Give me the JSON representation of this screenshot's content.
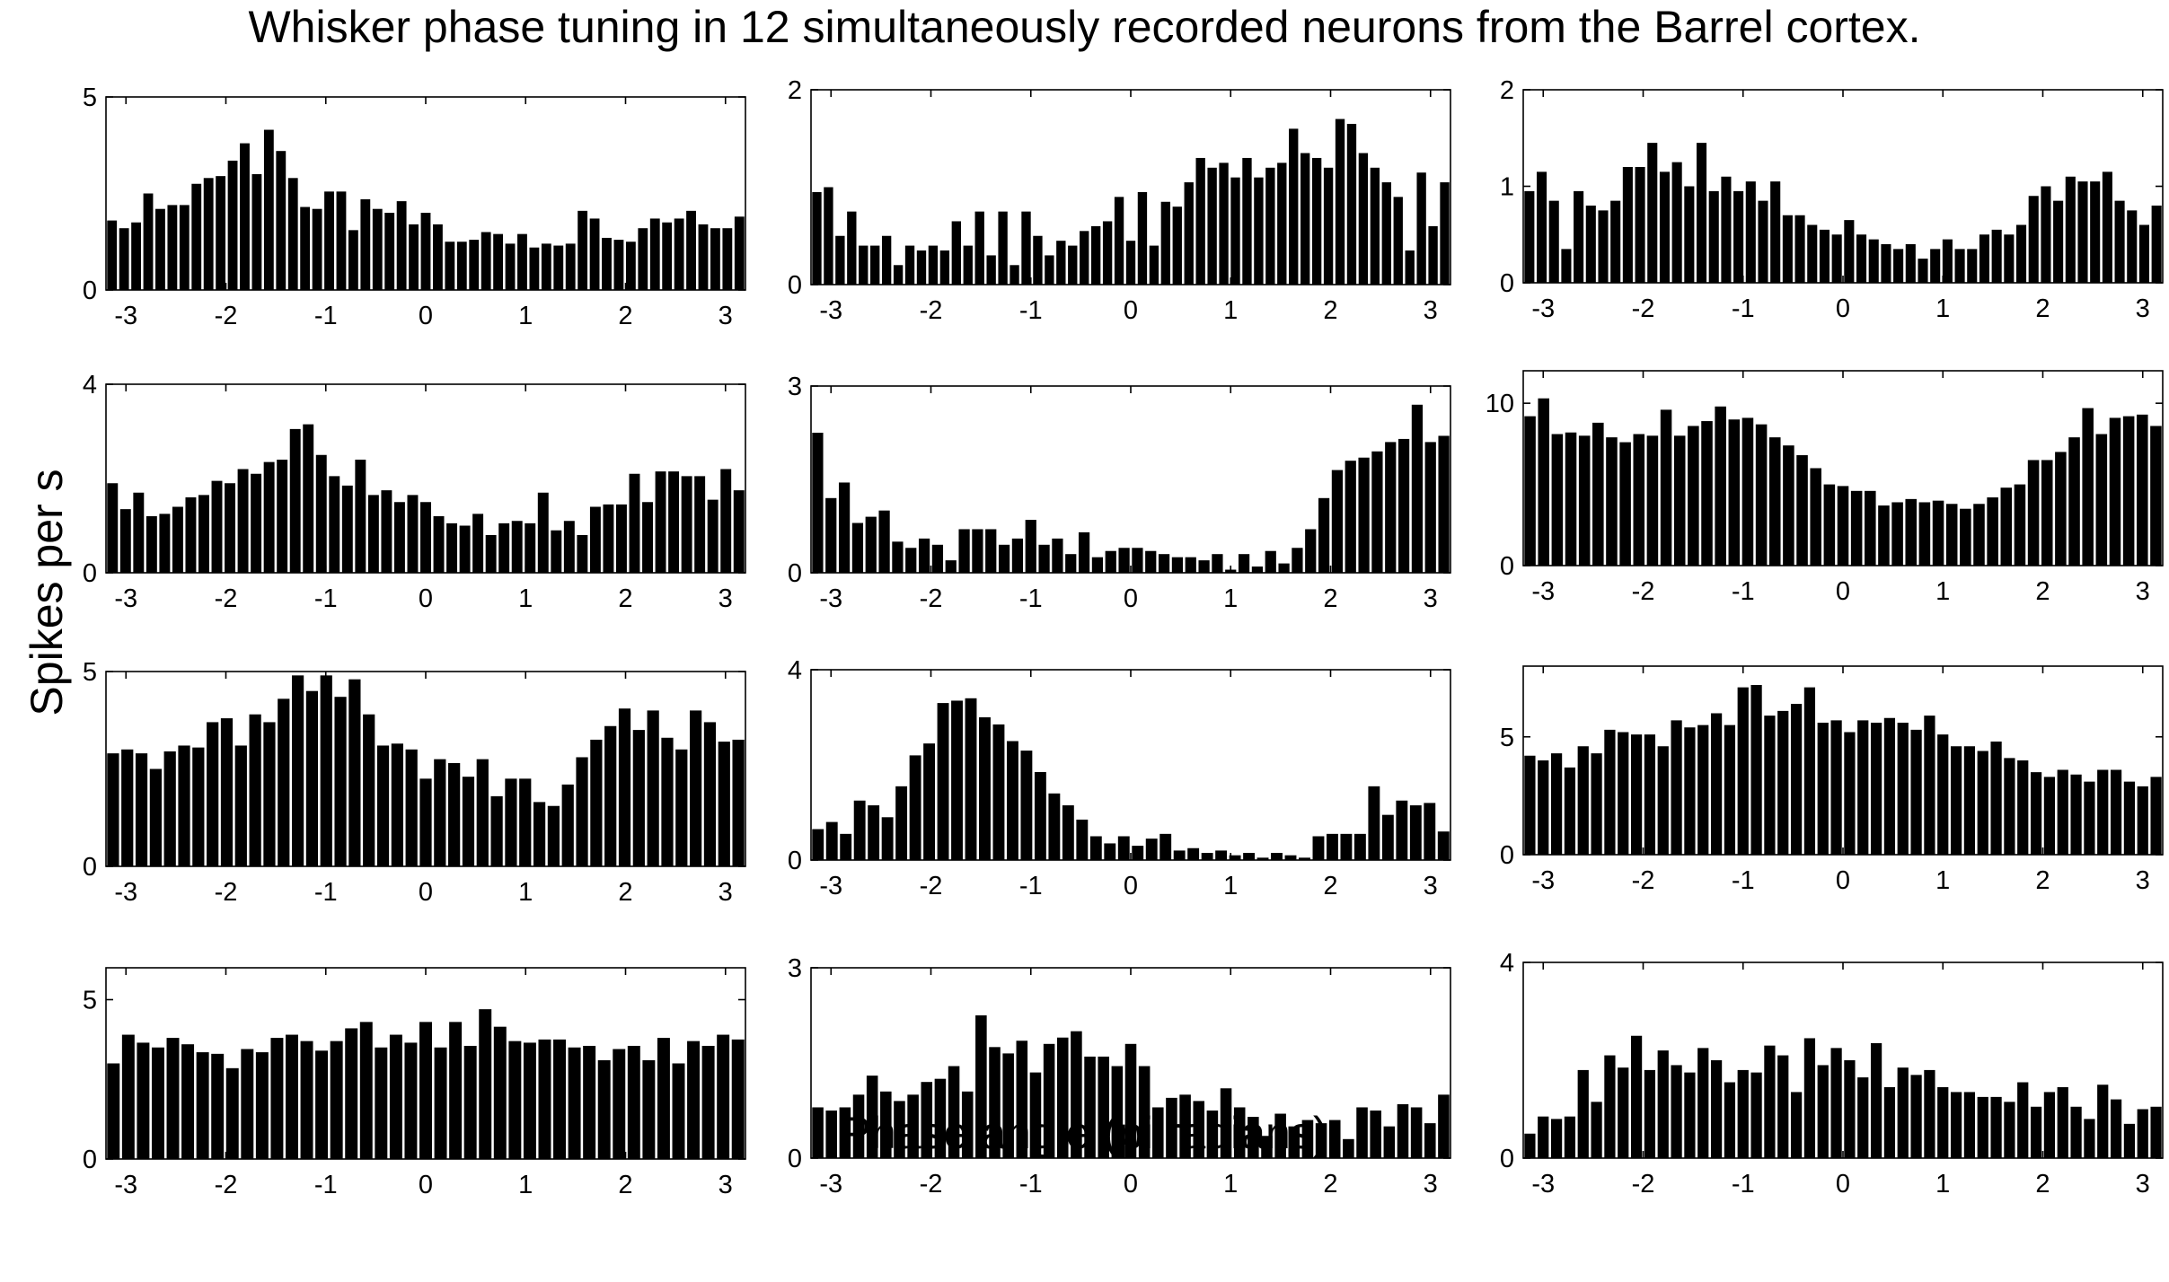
{
  "figure": {
    "title": "Whisker phase tuning in 12 simultaneously recorded neurons from the Barrel cortex.",
    "xlabel": "Phase angle (pi radians)",
    "ylabel": "Spikes per s"
  },
  "colors": {
    "bars": "#000000",
    "axes": "#000000",
    "background": "#ffffff"
  },
  "chart_data": [
    {
      "type": "bar",
      "title": "",
      "xlabel": "",
      "ylabel": "",
      "xlim": [
        -3.2,
        3.2
      ],
      "ylim": [
        0,
        5
      ],
      "xticks": [
        -3,
        -2,
        -1,
        0,
        1,
        2,
        3
      ],
      "yticks": [
        0,
        5
      ],
      "values": [
        1.8,
        1.6,
        1.75,
        2.5,
        2.1,
        2.2,
        2.2,
        2.75,
        2.9,
        2.95,
        3.35,
        3.8,
        3.0,
        4.15,
        3.6,
        2.9,
        2.15,
        2.1,
        2.55,
        2.55,
        1.55,
        2.35,
        2.1,
        2.0,
        2.3,
        1.7,
        2.0,
        1.7,
        1.25,
        1.25,
        1.3,
        1.5,
        1.45,
        1.2,
        1.45,
        1.1,
        1.2,
        1.15,
        1.2,
        2.05,
        1.85,
        1.35,
        1.3,
        1.25,
        1.6,
        1.85,
        1.75,
        1.85,
        2.05,
        1.7,
        1.6,
        1.6,
        1.9
      ],
      "grid": false,
      "legend": "none"
    },
    {
      "type": "bar",
      "title": "",
      "xlabel": "",
      "ylabel": "",
      "xlim": [
        -3.2,
        3.2
      ],
      "ylim": [
        0,
        2
      ],
      "xticks": [
        -3,
        -2,
        -1,
        0,
        1,
        2,
        3
      ],
      "yticks": [
        0,
        2
      ],
      "values": [
        0.95,
        1.0,
        0.5,
        0.75,
        0.4,
        0.4,
        0.5,
        0.2,
        0.4,
        0.35,
        0.4,
        0.35,
        0.65,
        0.4,
        0.75,
        0.3,
        0.75,
        0.2,
        0.75,
        0.5,
        0.3,
        0.45,
        0.4,
        0.55,
        0.6,
        0.65,
        0.9,
        0.45,
        0.95,
        0.4,
        0.85,
        0.8,
        1.05,
        1.3,
        1.2,
        1.25,
        1.1,
        1.3,
        1.1,
        1.2,
        1.25,
        1.6,
        1.35,
        1.3,
        1.2,
        1.7,
        1.65,
        1.35,
        1.2,
        1.05,
        0.9,
        0.35,
        1.15,
        0.6,
        1.05
      ],
      "grid": false,
      "legend": "none"
    },
    {
      "type": "bar",
      "title": "",
      "xlabel": "",
      "ylabel": "",
      "xlim": [
        -3.2,
        3.2
      ],
      "ylim": [
        0,
        2
      ],
      "xticks": [
        -3,
        -2,
        -1,
        0,
        1,
        2,
        3
      ],
      "yticks": [
        0,
        1,
        2
      ],
      "values": [
        0.95,
        1.15,
        0.85,
        0.35,
        0.95,
        0.8,
        0.75,
        0.85,
        1.2,
        1.2,
        1.45,
        1.15,
        1.25,
        1.0,
        1.45,
        0.95,
        1.1,
        0.95,
        1.05,
        0.85,
        1.05,
        0.7,
        0.7,
        0.6,
        0.55,
        0.5,
        0.65,
        0.5,
        0.45,
        0.4,
        0.35,
        0.4,
        0.25,
        0.35,
        0.45,
        0.35,
        0.35,
        0.5,
        0.55,
        0.5,
        0.6,
        0.9,
        1.0,
        0.85,
        1.1,
        1.05,
        1.05,
        1.15,
        0.85,
        0.75,
        0.6,
        0.8
      ],
      "grid": false,
      "legend": "none"
    },
    {
      "type": "bar",
      "title": "",
      "xlabel": "",
      "ylabel": "",
      "xlim": [
        -3.2,
        3.2
      ],
      "ylim": [
        0,
        4
      ],
      "xticks": [
        -3,
        -2,
        -1,
        0,
        1,
        2,
        3
      ],
      "yticks": [
        0,
        4
      ],
      "values": [
        1.9,
        1.35,
        1.7,
        1.2,
        1.25,
        1.4,
        1.6,
        1.65,
        1.95,
        1.9,
        2.2,
        2.1,
        2.35,
        2.4,
        3.05,
        3.15,
        2.5,
        2.05,
        1.85,
        2.4,
        1.65,
        1.75,
        1.5,
        1.65,
        1.5,
        1.2,
        1.05,
        1.0,
        1.25,
        0.8,
        1.05,
        1.1,
        1.05,
        1.7,
        0.9,
        1.1,
        0.8,
        1.4,
        1.45,
        1.45,
        2.1,
        1.5,
        2.15,
        2.15,
        2.05,
        2.05,
        1.55,
        2.2,
        1.75
      ],
      "grid": false,
      "legend": "none"
    },
    {
      "type": "bar",
      "title": "",
      "xlabel": "",
      "ylabel": "",
      "xlim": [
        -3.2,
        3.2
      ],
      "ylim": [
        0,
        3
      ],
      "xticks": [
        -3,
        -2,
        -1,
        0,
        1,
        2,
        3
      ],
      "yticks": [
        0,
        3
      ],
      "values": [
        2.25,
        1.2,
        1.45,
        0.8,
        0.9,
        1.0,
        0.5,
        0.4,
        0.55,
        0.45,
        0.2,
        0.7,
        0.7,
        0.7,
        0.45,
        0.55,
        0.85,
        0.45,
        0.55,
        0.3,
        0.65,
        0.25,
        0.35,
        0.4,
        0.4,
        0.35,
        0.3,
        0.25,
        0.25,
        0.2,
        0.3,
        0.05,
        0.3,
        0.1,
        0.35,
        0.15,
        0.4,
        0.7,
        1.2,
        1.65,
        1.8,
        1.85,
        1.95,
        2.1,
        2.15,
        2.7,
        2.1,
        2.2
      ],
      "grid": false,
      "legend": "none"
    },
    {
      "type": "bar",
      "title": "",
      "xlabel": "",
      "ylabel": "",
      "xlim": [
        -3.2,
        3.2
      ],
      "ylim": [
        0,
        12
      ],
      "xticks": [
        -3,
        -2,
        -1,
        0,
        1,
        2,
        3
      ],
      "yticks": [
        0,
        10
      ],
      "values": [
        9.2,
        10.3,
        8.1,
        8.2,
        8.0,
        8.8,
        7.9,
        7.6,
        8.1,
        8.0,
        9.6,
        8.0,
        8.6,
        8.9,
        9.8,
        9.0,
        9.1,
        8.7,
        7.9,
        7.4,
        6.8,
        6.0,
        5.0,
        4.9,
        4.6,
        4.6,
        3.7,
        3.9,
        4.1,
        3.9,
        4.0,
        3.8,
        3.5,
        3.8,
        4.2,
        4.8,
        5.0,
        6.5,
        6.5,
        7.0,
        7.9,
        9.7,
        8.1,
        9.1,
        9.2,
        9.3,
        8.6
      ],
      "grid": false,
      "legend": "none"
    },
    {
      "type": "bar",
      "title": "",
      "xlabel": "",
      "ylabel": "",
      "xlim": [
        -3.2,
        3.2
      ],
      "ylim": [
        0,
        5
      ],
      "xticks": [
        -3,
        -2,
        -1,
        0,
        1,
        2,
        3
      ],
      "yticks": [
        0,
        5
      ],
      "values": [
        2.9,
        3.0,
        2.9,
        2.5,
        2.95,
        3.1,
        3.05,
        3.7,
        3.8,
        3.1,
        3.9,
        3.7,
        4.3,
        4.9,
        4.5,
        4.9,
        4.35,
        4.8,
        3.9,
        3.1,
        3.15,
        3.0,
        2.25,
        2.75,
        2.65,
        2.3,
        2.75,
        1.8,
        2.25,
        2.25,
        1.65,
        1.55,
        2.1,
        2.8,
        3.25,
        3.6,
        4.05,
        3.5,
        4.0,
        3.3,
        3.0,
        4.0,
        3.7,
        3.2,
        3.25
      ],
      "grid": false,
      "legend": "none"
    },
    {
      "type": "bar",
      "title": "",
      "xlabel": "",
      "ylabel": "",
      "xlim": [
        -3.2,
        3.2
      ],
      "ylim": [
        0,
        4
      ],
      "xticks": [
        -3,
        -2,
        -1,
        0,
        1,
        2,
        3
      ],
      "yticks": [
        0,
        4
      ],
      "values": [
        0.65,
        0.8,
        0.55,
        1.25,
        1.15,
        0.9,
        1.55,
        2.2,
        2.45,
        3.3,
        3.35,
        3.4,
        3.0,
        2.85,
        2.5,
        2.3,
        1.85,
        1.4,
        1.15,
        0.85,
        0.5,
        0.35,
        0.5,
        0.3,
        0.45,
        0.55,
        0.2,
        0.25,
        0.15,
        0.2,
        0.1,
        0.15,
        0.05,
        0.15,
        0.1,
        0.05,
        0.5,
        0.55,
        0.55,
        0.55,
        1.55,
        0.95,
        1.25,
        1.15,
        1.2,
        0.6
      ],
      "grid": false,
      "legend": "none"
    },
    {
      "type": "bar",
      "title": "",
      "xlabel": "",
      "ylabel": "",
      "xlim": [
        -3.2,
        3.2
      ],
      "ylim": [
        0,
        8
      ],
      "xticks": [
        -3,
        -2,
        -1,
        0,
        1,
        2,
        3
      ],
      "yticks": [
        0,
        5
      ],
      "values": [
        4.2,
        4.0,
        4.3,
        3.7,
        4.6,
        4.3,
        5.3,
        5.2,
        5.1,
        5.1,
        4.6,
        5.7,
        5.4,
        5.5,
        6.0,
        5.5,
        7.1,
        7.2,
        5.9,
        6.1,
        6.4,
        7.1,
        5.6,
        5.7,
        5.2,
        5.7,
        5.6,
        5.8,
        5.6,
        5.3,
        5.9,
        5.1,
        4.6,
        4.6,
        4.4,
        4.8,
        4.1,
        4.0,
        3.5,
        3.3,
        3.6,
        3.4,
        3.1,
        3.6,
        3.6,
        3.1,
        2.9,
        3.3
      ],
      "grid": false,
      "legend": "none"
    },
    {
      "type": "bar",
      "title": "",
      "xlabel": "",
      "ylabel": "",
      "xlim": [
        -3.2,
        3.2
      ],
      "ylim": [
        0,
        6
      ],
      "xticks": [
        -3,
        -2,
        -1,
        0,
        1,
        2,
        3
      ],
      "yticks": [
        0,
        5
      ],
      "values": [
        3.0,
        3.9,
        3.65,
        3.5,
        3.8,
        3.6,
        3.35,
        3.3,
        2.85,
        3.45,
        3.35,
        3.8,
        3.9,
        3.7,
        3.4,
        3.7,
        4.1,
        4.3,
        3.5,
        3.9,
        3.65,
        4.3,
        3.5,
        4.3,
        3.55,
        4.7,
        4.15,
        3.7,
        3.65,
        3.75,
        3.75,
        3.5,
        3.55,
        3.1,
        3.45,
        3.55,
        3.1,
        3.8,
        3.0,
        3.7,
        3.55,
        3.9,
        3.75
      ],
      "grid": false,
      "legend": "none"
    },
    {
      "type": "bar",
      "title": "",
      "xlabel": "",
      "ylabel": "",
      "xlim": [
        -3.2,
        3.2
      ],
      "ylim": [
        0,
        3
      ],
      "xticks": [
        -3,
        -2,
        -1,
        0,
        1,
        2,
        3
      ],
      "yticks": [
        0,
        3
      ],
      "values": [
        0.8,
        0.75,
        0.8,
        1.0,
        1.3,
        1.05,
        0.9,
        1.0,
        1.2,
        1.25,
        1.45,
        1.05,
        2.25,
        1.75,
        1.65,
        1.85,
        1.35,
        1.8,
        1.9,
        2.0,
        1.6,
        1.6,
        1.45,
        1.8,
        1.45,
        0.8,
        0.95,
        1.0,
        0.9,
        0.75,
        1.1,
        0.8,
        0.65,
        0.35,
        0.7,
        0.5,
        0.6,
        0.55,
        0.6,
        0.3,
        0.8,
        0.75,
        0.5,
        0.85,
        0.8,
        0.55,
        1.0
      ],
      "grid": false,
      "legend": "none"
    },
    {
      "type": "bar",
      "title": "",
      "xlabel": "",
      "ylabel": "",
      "xlim": [
        -3.2,
        3.2
      ],
      "ylim": [
        0,
        4
      ],
      "xticks": [
        -3,
        -2,
        -1,
        0,
        1,
        2,
        3
      ],
      "yticks": [
        0,
        4
      ],
      "values": [
        0.5,
        0.85,
        0.8,
        0.85,
        1.8,
        1.15,
        2.1,
        1.85,
        2.5,
        1.8,
        2.2,
        1.9,
        1.75,
        2.25,
        2.0,
        1.55,
        1.8,
        1.75,
        2.3,
        2.1,
        1.35,
        2.45,
        1.9,
        2.25,
        2.0,
        1.65,
        2.35,
        1.45,
        1.85,
        1.7,
        1.8,
        1.45,
        1.35,
        1.35,
        1.25,
        1.25,
        1.15,
        1.55,
        1.05,
        1.35,
        1.45,
        1.05,
        0.8,
        1.5,
        1.2,
        0.7,
        1.0,
        1.05
      ],
      "grid": false,
      "legend": "none"
    }
  ]
}
